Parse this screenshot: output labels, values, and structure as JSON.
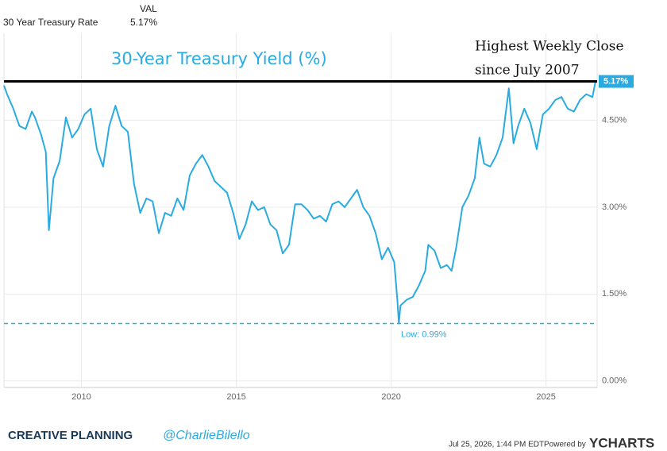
{
  "header": {
    "column": "VAL",
    "name": "30 Year Treasury Rate",
    "value": "5.17%"
  },
  "footer": {
    "brand": "CREATIVE PLANNING",
    "handle": "@CharlieBilello",
    "timestamp": "Jul 25, 2026, 1:44 PM EDT",
    "powered_by": "Powered by",
    "source": "YCHARTS"
  },
  "chart_data": {
    "type": "line",
    "title": "30-Year Treasury Yield (%)",
    "x": [
      2007.5,
      2007.6,
      2007.8,
      2007.9,
      2008.0,
      2008.2,
      2008.4,
      2008.5,
      2008.7,
      2008.85,
      2008.95,
      2009.1,
      2009.3,
      2009.5,
      2009.7,
      2009.9,
      2010.1,
      2010.3,
      2010.5,
      2010.7,
      2010.9,
      2011.1,
      2011.3,
      2011.5,
      2011.7,
      2011.9,
      2012.1,
      2012.3,
      2012.5,
      2012.7,
      2012.9,
      2013.1,
      2013.3,
      2013.5,
      2013.7,
      2013.9,
      2014.1,
      2014.3,
      2014.5,
      2014.7,
      2014.9,
      2015.1,
      2015.3,
      2015.5,
      2015.7,
      2015.9,
      2016.1,
      2016.3,
      2016.5,
      2016.7,
      2016.9,
      2017.1,
      2017.3,
      2017.5,
      2017.7,
      2017.9,
      2018.1,
      2018.3,
      2018.5,
      2018.7,
      2018.9,
      2019.1,
      2019.3,
      2019.5,
      2019.7,
      2019.9,
      2020.1,
      2020.2,
      2020.25,
      2020.3,
      2020.5,
      2020.7,
      2020.9,
      2021.1,
      2021.2,
      2021.4,
      2021.6,
      2021.8,
      2021.95,
      2022.1,
      2022.3,
      2022.5,
      2022.7,
      2022.85,
      2023.0,
      2023.2,
      2023.4,
      2023.6,
      2023.8,
      2023.95,
      2024.1,
      2024.3,
      2024.5,
      2024.7,
      2024.9,
      2025.1,
      2025.3,
      2025.5,
      2025.7,
      2025.9,
      2026.1,
      2026.3,
      2026.5,
      2026.6
    ],
    "series": [
      {
        "name": "30 Year Treasury Rate",
        "color": "#29abe2",
        "values": [
          5.1,
          4.95,
          4.7,
          4.55,
          4.4,
          4.35,
          4.65,
          4.55,
          4.25,
          3.95,
          2.6,
          3.5,
          3.8,
          4.55,
          4.2,
          4.35,
          4.6,
          4.7,
          4.0,
          3.7,
          4.4,
          4.75,
          4.4,
          4.3,
          3.4,
          2.9,
          3.15,
          3.1,
          2.55,
          2.9,
          2.85,
          3.15,
          2.95,
          3.55,
          3.75,
          3.9,
          3.7,
          3.45,
          3.35,
          3.25,
          2.9,
          2.45,
          2.7,
          3.1,
          2.95,
          3.0,
          2.7,
          2.6,
          2.2,
          2.35,
          3.05,
          3.05,
          2.95,
          2.8,
          2.85,
          2.75,
          3.05,
          3.1,
          3.0,
          3.15,
          3.3,
          3.0,
          2.85,
          2.55,
          2.1,
          2.3,
          2.05,
          1.4,
          0.99,
          1.3,
          1.4,
          1.45,
          1.65,
          1.9,
          2.35,
          2.25,
          1.95,
          2.0,
          1.9,
          2.3,
          3.0,
          3.2,
          3.5,
          4.2,
          3.75,
          3.7,
          3.9,
          4.2,
          5.05,
          4.1,
          4.4,
          4.7,
          4.45,
          4.0,
          4.6,
          4.7,
          4.85,
          4.9,
          4.7,
          4.65,
          4.85,
          4.95,
          4.9,
          5.17
        ]
      }
    ],
    "last_value": {
      "value": 5.17,
      "label": "5.17%"
    },
    "reference_lines": [
      {
        "value": 5.17,
        "color": "#000000",
        "style": "solid",
        "label": [
          "Highest Weekly Close",
          "since July 2007"
        ]
      },
      {
        "value": 0.99,
        "color": "#29abe2",
        "style": "dashed",
        "label": "Low: 0.99%"
      }
    ],
    "xlim": [
      2007.5,
      2026.65
    ],
    "xticks": [
      2010,
      2015,
      2020,
      2025
    ],
    "ylim": [
      -0.1,
      6
    ],
    "yticks": [
      {
        "value": 0,
        "label": "0.00%"
      },
      {
        "value": 1.5,
        "label": "1.50%"
      },
      {
        "value": 3,
        "label": "3.00%"
      },
      {
        "value": 4.5,
        "label": "4.50%"
      }
    ],
    "grid": true
  }
}
